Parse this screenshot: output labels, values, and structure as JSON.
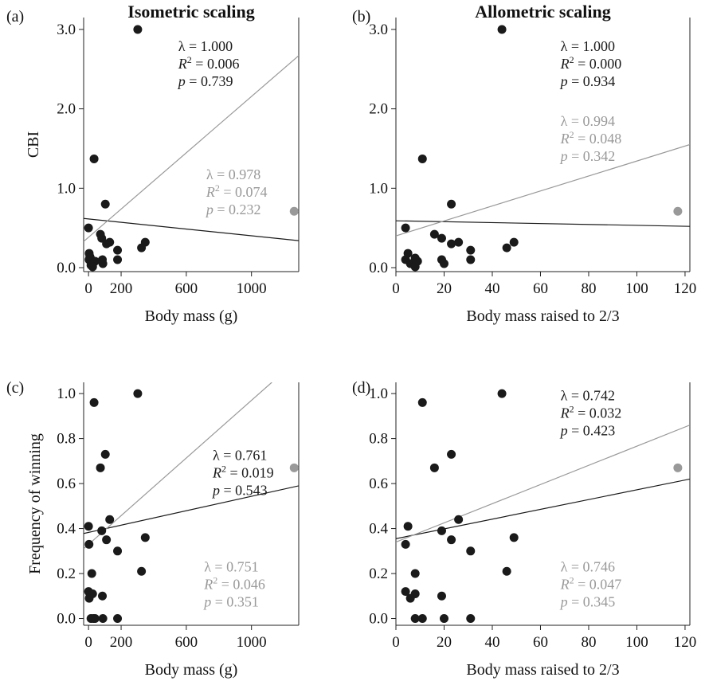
{
  "figure": {
    "colors": {
      "black": "#1a1a1a",
      "gray": "#999999",
      "axis": "#222222"
    }
  },
  "chart_data": [
    {
      "type": "scatter",
      "panel_label": "(a)",
      "title": "Isometric scaling",
      "xlabel": "Body mass (g)",
      "ylabel": "CBI",
      "xlim": [
        -30,
        1290
      ],
      "ylim": [
        -0.05,
        3.15
      ],
      "xticks": [
        0,
        200,
        600,
        1000
      ],
      "xtick_labels": [
        "0",
        "200",
        "600",
        "1000"
      ],
      "yticks": [
        0,
        1,
        2,
        3
      ],
      "ytick_labels": [
        "0.0",
        "1.0",
        "2.0",
        "3.0"
      ],
      "grid": false,
      "series": [
        {
          "color": "#1a1a1a",
          "points": [
            [
              302,
              3.0
            ],
            [
              34,
              1.37
            ],
            [
              103,
              0.8
            ],
            [
              0,
              0.5
            ],
            [
              73,
              0.42
            ],
            [
              81,
              0.37
            ],
            [
              130,
              0.32
            ],
            [
              110,
              0.3
            ],
            [
              348,
              0.32
            ],
            [
              325,
              0.25
            ],
            [
              178,
              0.22
            ],
            [
              178,
              0.1
            ],
            [
              85,
              0.1
            ],
            [
              88,
              0.05
            ],
            [
              4,
              0.18
            ],
            [
              8,
              0.14
            ],
            [
              12,
              0.12
            ],
            [
              3,
              0.1
            ],
            [
              20,
              0.08
            ],
            [
              30,
              0.06
            ],
            [
              40,
              0.08
            ],
            [
              15,
              0.03
            ],
            [
              25,
              0.01
            ]
          ]
        },
        {
          "color": "#999999",
          "points": [
            [
              1262,
              0.71
            ]
          ]
        }
      ],
      "fits": [
        {
          "color": "#1a1a1a",
          "x": [
            -30,
            1290
          ],
          "y": [
            0.62,
            0.34
          ]
        },
        {
          "color": "#999999",
          "x": [
            -30,
            1290
          ],
          "y": [
            0.33,
            2.67
          ]
        }
      ],
      "annotations": [
        {
          "lines": [
            "λ = 1.000",
            "R2 = 0.006",
            "p = 0.739"
          ],
          "color": "#1a1a1a",
          "pos": "top-center"
        },
        {
          "lines": [
            "λ = 0.978",
            "R2 = 0.074",
            "p = 0.232"
          ],
          "color": "#999999",
          "pos": "middle-right"
        }
      ]
    },
    {
      "type": "scatter",
      "panel_label": "(b)",
      "title": "Allometric scaling",
      "xlabel": "Body mass raised to 2/3",
      "ylabel": "",
      "xlim": [
        0,
        122
      ],
      "ylim": [
        -0.05,
        3.15
      ],
      "xticks": [
        0,
        20,
        40,
        60,
        80,
        100,
        120
      ],
      "xtick_labels": [
        "0",
        "20",
        "40",
        "60",
        "80",
        "100",
        "120"
      ],
      "yticks": [
        0,
        1,
        2,
        3
      ],
      "ytick_labels": [
        "0.0",
        "1.0",
        "2.0",
        "3.0"
      ],
      "grid": false,
      "series": [
        {
          "color": "#1a1a1a",
          "points": [
            [
              44,
              3.0
            ],
            [
              11,
              1.37
            ],
            [
              23,
              0.8
            ],
            [
              4,
              0.5
            ],
            [
              16,
              0.42
            ],
            [
              19,
              0.37
            ],
            [
              26,
              0.32
            ],
            [
              23,
              0.3
            ],
            [
              49,
              0.32
            ],
            [
              46,
              0.25
            ],
            [
              31,
              0.22
            ],
            [
              31,
              0.1
            ],
            [
              19,
              0.1
            ],
            [
              20,
              0.05
            ],
            [
              5,
              0.18
            ],
            [
              8,
              0.12
            ],
            [
              4,
              0.1
            ],
            [
              6,
              0.05
            ],
            [
              9,
              0.08
            ],
            [
              8,
              0.01
            ]
          ]
        },
        {
          "color": "#999999",
          "points": [
            [
              117,
              0.71
            ]
          ]
        }
      ],
      "fits": [
        {
          "color": "#1a1a1a",
          "x": [
            0,
            122
          ],
          "y": [
            0.59,
            0.52
          ]
        },
        {
          "color": "#999999",
          "x": [
            0,
            122
          ],
          "y": [
            0.4,
            1.55
          ]
        }
      ],
      "annotations": [
        {
          "lines": [
            "λ = 1.000",
            "R2 = 0.000",
            "p = 0.934"
          ],
          "color": "#1a1a1a",
          "pos": "top-center"
        },
        {
          "lines": [
            "λ = 0.994",
            "R2 = 0.048",
            "p = 0.342"
          ],
          "color": "#999999",
          "pos": "upper-right"
        }
      ]
    },
    {
      "type": "scatter",
      "panel_label": "(c)",
      "title": "",
      "xlabel": "Body mass (g)",
      "ylabel": "Frequency of winning",
      "xlim": [
        -30,
        1290
      ],
      "ylim": [
        -0.03,
        1.05
      ],
      "xticks": [
        0,
        200,
        600,
        1000
      ],
      "xtick_labels": [
        "0",
        "200",
        "600",
        "1000"
      ],
      "yticks": [
        0,
        0.2,
        0.4,
        0.6,
        0.8,
        1.0
      ],
      "ytick_labels": [
        "0.0",
        "0.2",
        "0.4",
        "0.6",
        "0.8",
        "1.0"
      ],
      "grid": false,
      "series": [
        {
          "color": "#1a1a1a",
          "points": [
            [
              302,
              1.0
            ],
            [
              34,
              0.96
            ],
            [
              103,
              0.73
            ],
            [
              73,
              0.67
            ],
            [
              130,
              0.44
            ],
            [
              0,
              0.41
            ],
            [
              81,
              0.39
            ],
            [
              348,
              0.36
            ],
            [
              110,
              0.35
            ],
            [
              3,
              0.33
            ],
            [
              178,
              0.3
            ],
            [
              325,
              0.21
            ],
            [
              20,
              0.2
            ],
            [
              0,
              0.12
            ],
            [
              8,
              0.11
            ],
            [
              25,
              0.11
            ],
            [
              4,
              0.09
            ],
            [
              85,
              0.1
            ],
            [
              15,
              0.0
            ],
            [
              30,
              0.0
            ],
            [
              40,
              0.0
            ],
            [
              88,
              0.0
            ],
            [
              178,
              0.0
            ]
          ]
        },
        {
          "color": "#999999",
          "points": [
            [
              1262,
              0.67
            ]
          ]
        }
      ],
      "fits": [
        {
          "color": "#1a1a1a",
          "x": [
            -30,
            1290
          ],
          "y": [
            0.378,
            0.59
          ]
        },
        {
          "color": "#999999",
          "x": [
            -30,
            1125
          ],
          "y": [
            0.31,
            1.05
          ]
        }
      ],
      "annotations": [
        {
          "lines": [
            "λ = 0.761",
            "R2 = 0.019",
            "p = 0.543"
          ],
          "color": "#1a1a1a",
          "pos": "middle-right"
        },
        {
          "lines": [
            "λ = 0.751",
            "R2 = 0.046",
            "p = 0.351"
          ],
          "color": "#999999",
          "pos": "lower-right"
        }
      ]
    },
    {
      "type": "scatter",
      "panel_label": "(d)",
      "title": "",
      "xlabel": "Body mass raised to 2/3",
      "ylabel": "",
      "xlim": [
        0,
        122
      ],
      "ylim": [
        -0.03,
        1.05
      ],
      "xticks": [
        0,
        20,
        40,
        60,
        80,
        100,
        120
      ],
      "xtick_labels": [
        "0",
        "20",
        "40",
        "60",
        "80",
        "100",
        "120"
      ],
      "yticks": [
        0,
        0.2,
        0.4,
        0.6,
        0.8,
        1.0
      ],
      "ytick_labels": [
        "0.0",
        "0.2",
        "0.4",
        "0.6",
        "0.8",
        "1.0"
      ],
      "grid": false,
      "series": [
        {
          "color": "#1a1a1a",
          "points": [
            [
              44,
              1.0
            ],
            [
              11,
              0.96
            ],
            [
              23,
              0.73
            ],
            [
              16,
              0.67
            ],
            [
              26,
              0.44
            ],
            [
              5,
              0.41
            ],
            [
              19,
              0.39
            ],
            [
              49,
              0.36
            ],
            [
              23,
              0.35
            ],
            [
              4,
              0.33
            ],
            [
              31,
              0.3
            ],
            [
              46,
              0.21
            ],
            [
              8,
              0.2
            ],
            [
              4,
              0.12
            ],
            [
              8,
              0.11
            ],
            [
              6,
              0.09
            ],
            [
              19,
              0.1
            ],
            [
              8,
              0.0
            ],
            [
              11,
              0.0
            ],
            [
              20,
              0.0
            ],
            [
              31,
              0.0
            ]
          ]
        },
        {
          "color": "#999999",
          "points": [
            [
              117,
              0.67
            ]
          ]
        }
      ],
      "fits": [
        {
          "color": "#1a1a1a",
          "x": [
            0,
            122
          ],
          "y": [
            0.355,
            0.62
          ]
        },
        {
          "color": "#999999",
          "x": [
            0,
            122
          ],
          "y": [
            0.34,
            0.86
          ]
        }
      ],
      "annotations": [
        {
          "lines": [
            "λ = 0.742",
            "R2 = 0.032",
            "p = 0.423"
          ],
          "color": "#1a1a1a",
          "pos": "top-center"
        },
        {
          "lines": [
            "λ = 0.746",
            "R2 = 0.047",
            "p = 0.345"
          ],
          "color": "#999999",
          "pos": "lower-right"
        }
      ]
    }
  ]
}
